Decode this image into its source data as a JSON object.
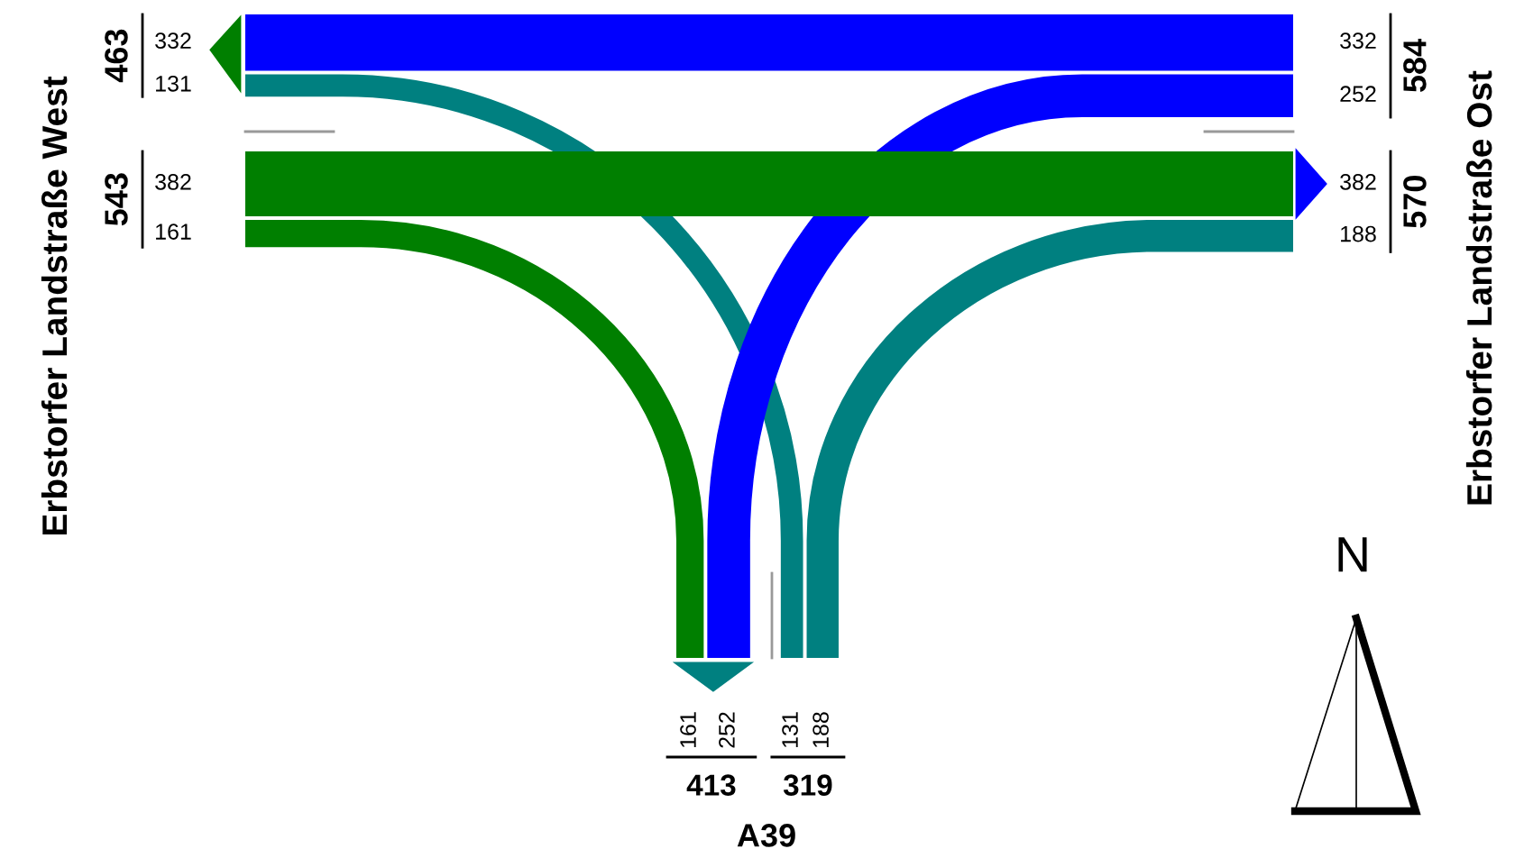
{
  "chart_data": {
    "type": "other",
    "categories": [
      "Erbstorfer Landstraße West",
      "Erbstorfer Landstraße Ost",
      "A39"
    ],
    "series": [
      {
        "color": "#0000ff",
        "values": [
          332,
          332,
          null
        ]
      },
      {
        "color": "#008080",
        "values": [
          131,
          null,
          131
        ]
      },
      {
        "color": "#0000ff",
        "values": [
          null,
          252,
          252
        ]
      },
      {
        "color": "#007f00",
        "values": [
          382,
          382,
          null
        ]
      },
      {
        "color": "#007f00",
        "values": [
          161,
          null,
          161
        ]
      },
      {
        "color": "#008080",
        "values": [
          null,
          188,
          188
        ]
      }
    ],
    "totals": [
      "463",
      "543",
      "584",
      "570",
      "413",
      "319"
    ],
    "annotations": [
      "N"
    ],
    "data_labels": true
  }
}
